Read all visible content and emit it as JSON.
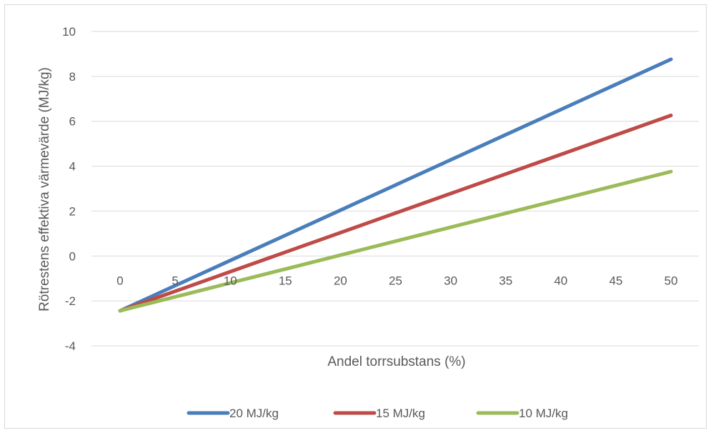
{
  "chart_data": {
    "type": "line",
    "title": "",
    "xlabel": "Andel torrsubstans (%)",
    "ylabel": "Rötrestens effektiva värmevärde (MJ/kg)",
    "x": [
      0,
      5,
      10,
      15,
      20,
      25,
      30,
      35,
      40,
      45,
      50
    ],
    "x_ticks": [
      "0",
      "5",
      "10",
      "15",
      "20",
      "25",
      "30",
      "35",
      "40",
      "45",
      "50"
    ],
    "y_ticks": [
      "10",
      "8",
      "6",
      "4",
      "2",
      "0",
      "-2",
      "-4"
    ],
    "ylim": [
      -4,
      10
    ],
    "grid": "horizontal",
    "legend_position": "bottom",
    "series": [
      {
        "name": "20 MJ/kg",
        "color": "#4a7ebb",
        "values": [
          -2.44,
          -1.32,
          -0.2,
          0.92,
          2.04,
          3.16,
          4.28,
          5.4,
          6.52,
          7.64,
          8.76
        ]
      },
      {
        "name": "15 MJ/kg",
        "color": "#be4b48",
        "values": [
          -2.44,
          -1.57,
          -0.7,
          0.17,
          1.04,
          1.91,
          2.78,
          3.65,
          4.52,
          5.39,
          6.26
        ]
      },
      {
        "name": "10 MJ/kg",
        "color": "#9bbb59",
        "values": [
          -2.44,
          -1.82,
          -1.2,
          -0.58,
          0.04,
          0.66,
          1.28,
          1.9,
          2.52,
          3.14,
          3.76
        ]
      }
    ]
  }
}
